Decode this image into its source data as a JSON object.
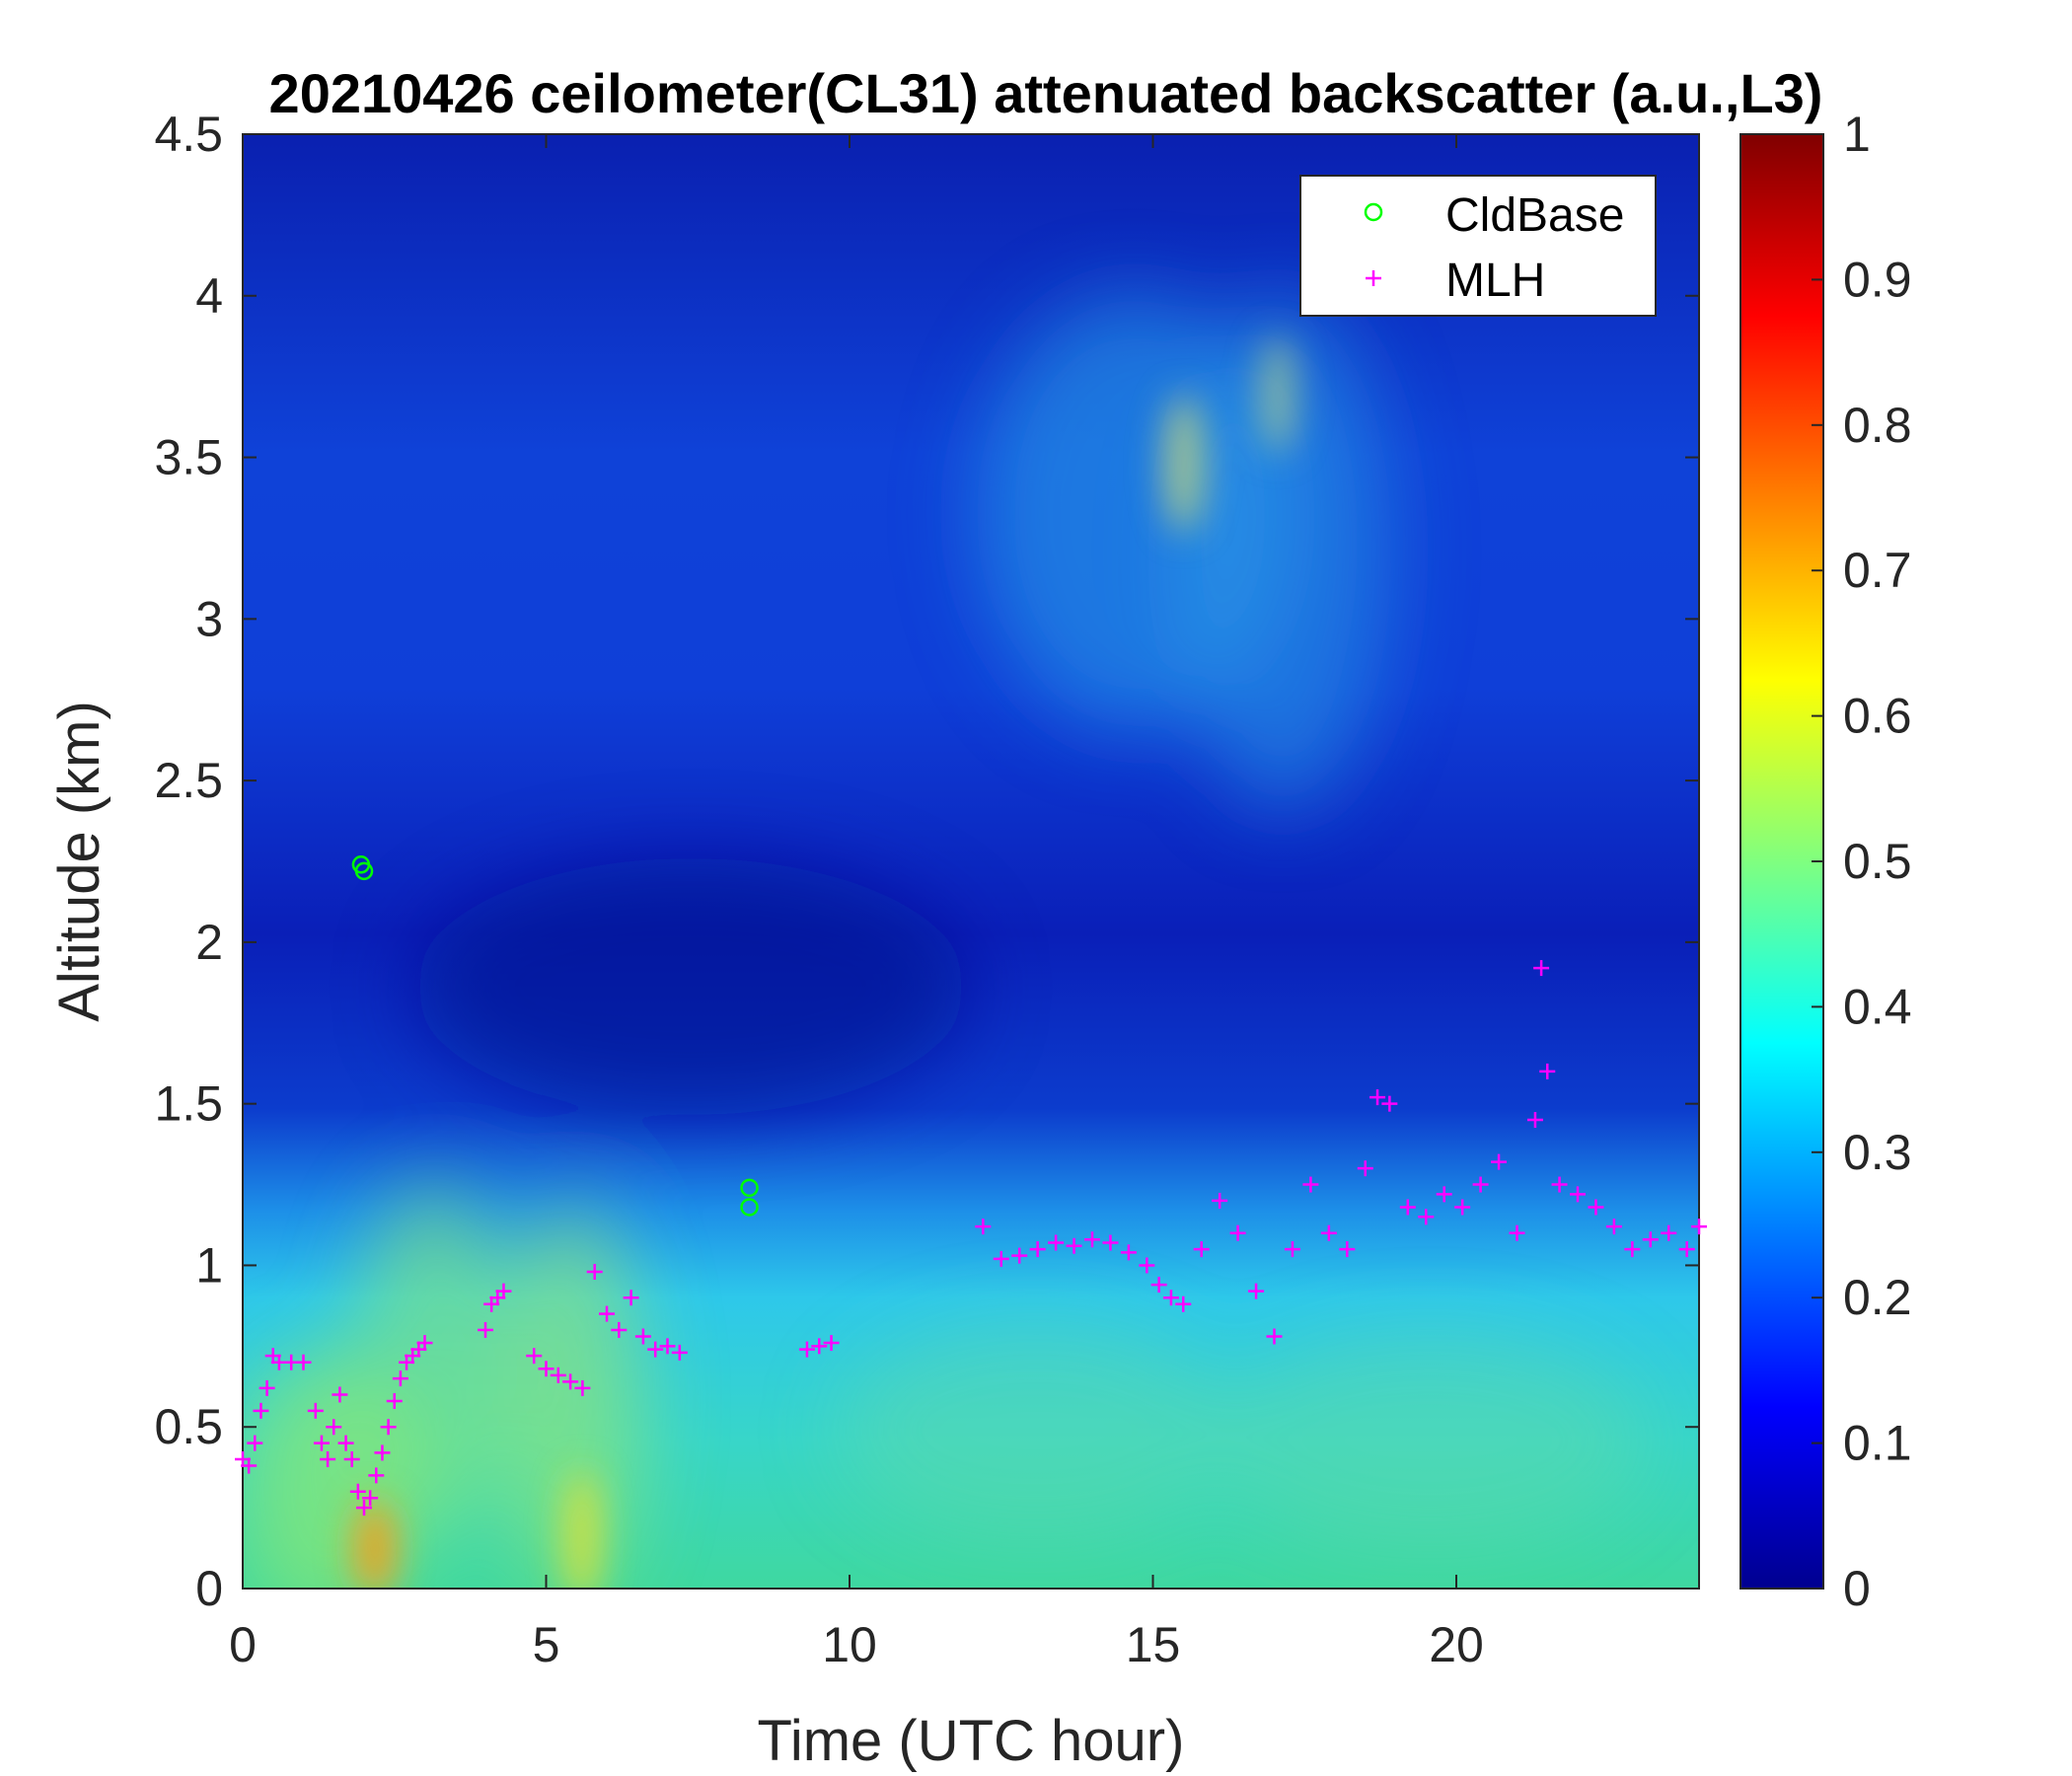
{
  "chart_data": {
    "type": "heatmap",
    "title": "20210426 ceilometer(CL31) attenuated backscatter (a.u.,L3)",
    "xlabel": "Time (UTC hour)",
    "ylabel": "Altitude (km)",
    "xlim": [
      0,
      24
    ],
    "ylim": [
      0,
      4.5
    ],
    "xticks": [
      0,
      5,
      10,
      15,
      20
    ],
    "yticks": [
      0,
      0.5,
      1,
      1.5,
      2,
      2.5,
      3,
      3.5,
      4,
      4.5
    ],
    "colorbar": {
      "colormap": "jet",
      "range": [
        0,
        1
      ],
      "ticks": [
        0,
        0.1,
        0.2,
        0.3,
        0.4,
        0.5,
        0.6,
        0.7,
        0.8,
        0.9,
        1
      ]
    },
    "legend": {
      "position": "top-right",
      "entries": [
        {
          "label": "CldBase",
          "marker": "circle",
          "color": "#00ff00"
        },
        {
          "label": "MLH",
          "marker": "plus",
          "color": "#ff00ff"
        }
      ]
    },
    "series": [
      {
        "name": "CldBase",
        "x": [
          1.95,
          2.0,
          8.35,
          8.35
        ],
        "y": [
          2.24,
          2.22,
          1.24,
          1.18
        ]
      },
      {
        "name": "MLH",
        "x": [
          0.0,
          0.1,
          0.2,
          0.3,
          0.4,
          0.5,
          0.6,
          0.8,
          1.0,
          1.2,
          1.3,
          1.4,
          1.5,
          1.6,
          1.7,
          1.8,
          1.9,
          2.0,
          2.1,
          2.2,
          2.3,
          2.4,
          2.5,
          2.6,
          2.7,
          2.8,
          2.9,
          3.0,
          4.0,
          4.1,
          4.2,
          4.3,
          4.8,
          5.0,
          5.2,
          5.4,
          5.6,
          5.8,
          6.0,
          6.2,
          6.4,
          6.6,
          6.8,
          7.0,
          7.2,
          9.3,
          9.5,
          9.7,
          12.2,
          12.5,
          12.8,
          13.1,
          13.4,
          13.7,
          14.0,
          14.3,
          14.6,
          14.9,
          15.1,
          15.3,
          15.5,
          15.8,
          16.1,
          16.4,
          16.7,
          17.0,
          17.3,
          17.6,
          17.9,
          18.2,
          18.5,
          18.7,
          18.9,
          19.2,
          19.5,
          19.8,
          20.1,
          20.4,
          20.7,
          21.0,
          21.3,
          21.4,
          21.5,
          21.7,
          22.0,
          22.3,
          22.6,
          22.9,
          23.2,
          23.5,
          23.8,
          24.0
        ],
        "y": [
          0.4,
          0.38,
          0.45,
          0.55,
          0.62,
          0.72,
          0.7,
          0.7,
          0.7,
          0.55,
          0.45,
          0.4,
          0.5,
          0.6,
          0.45,
          0.4,
          0.3,
          0.25,
          0.28,
          0.35,
          0.42,
          0.5,
          0.58,
          0.65,
          0.7,
          0.72,
          0.74,
          0.76,
          0.8,
          0.88,
          0.9,
          0.92,
          0.72,
          0.68,
          0.66,
          0.64,
          0.62,
          0.98,
          0.85,
          0.8,
          0.9,
          0.78,
          0.74,
          0.75,
          0.73,
          0.74,
          0.75,
          0.76,
          1.12,
          1.02,
          1.03,
          1.05,
          1.07,
          1.06,
          1.08,
          1.07,
          1.04,
          1.0,
          0.94,
          0.9,
          0.88,
          1.05,
          1.2,
          1.1,
          0.92,
          0.78,
          1.05,
          1.25,
          1.1,
          1.05,
          1.3,
          1.52,
          1.5,
          1.18,
          1.15,
          1.22,
          1.18,
          1.25,
          1.32,
          1.1,
          1.45,
          1.92,
          1.6,
          1.25,
          1.22,
          1.18,
          1.12,
          1.05,
          1.08,
          1.1,
          1.05,
          1.12
        ]
      }
    ]
  }
}
